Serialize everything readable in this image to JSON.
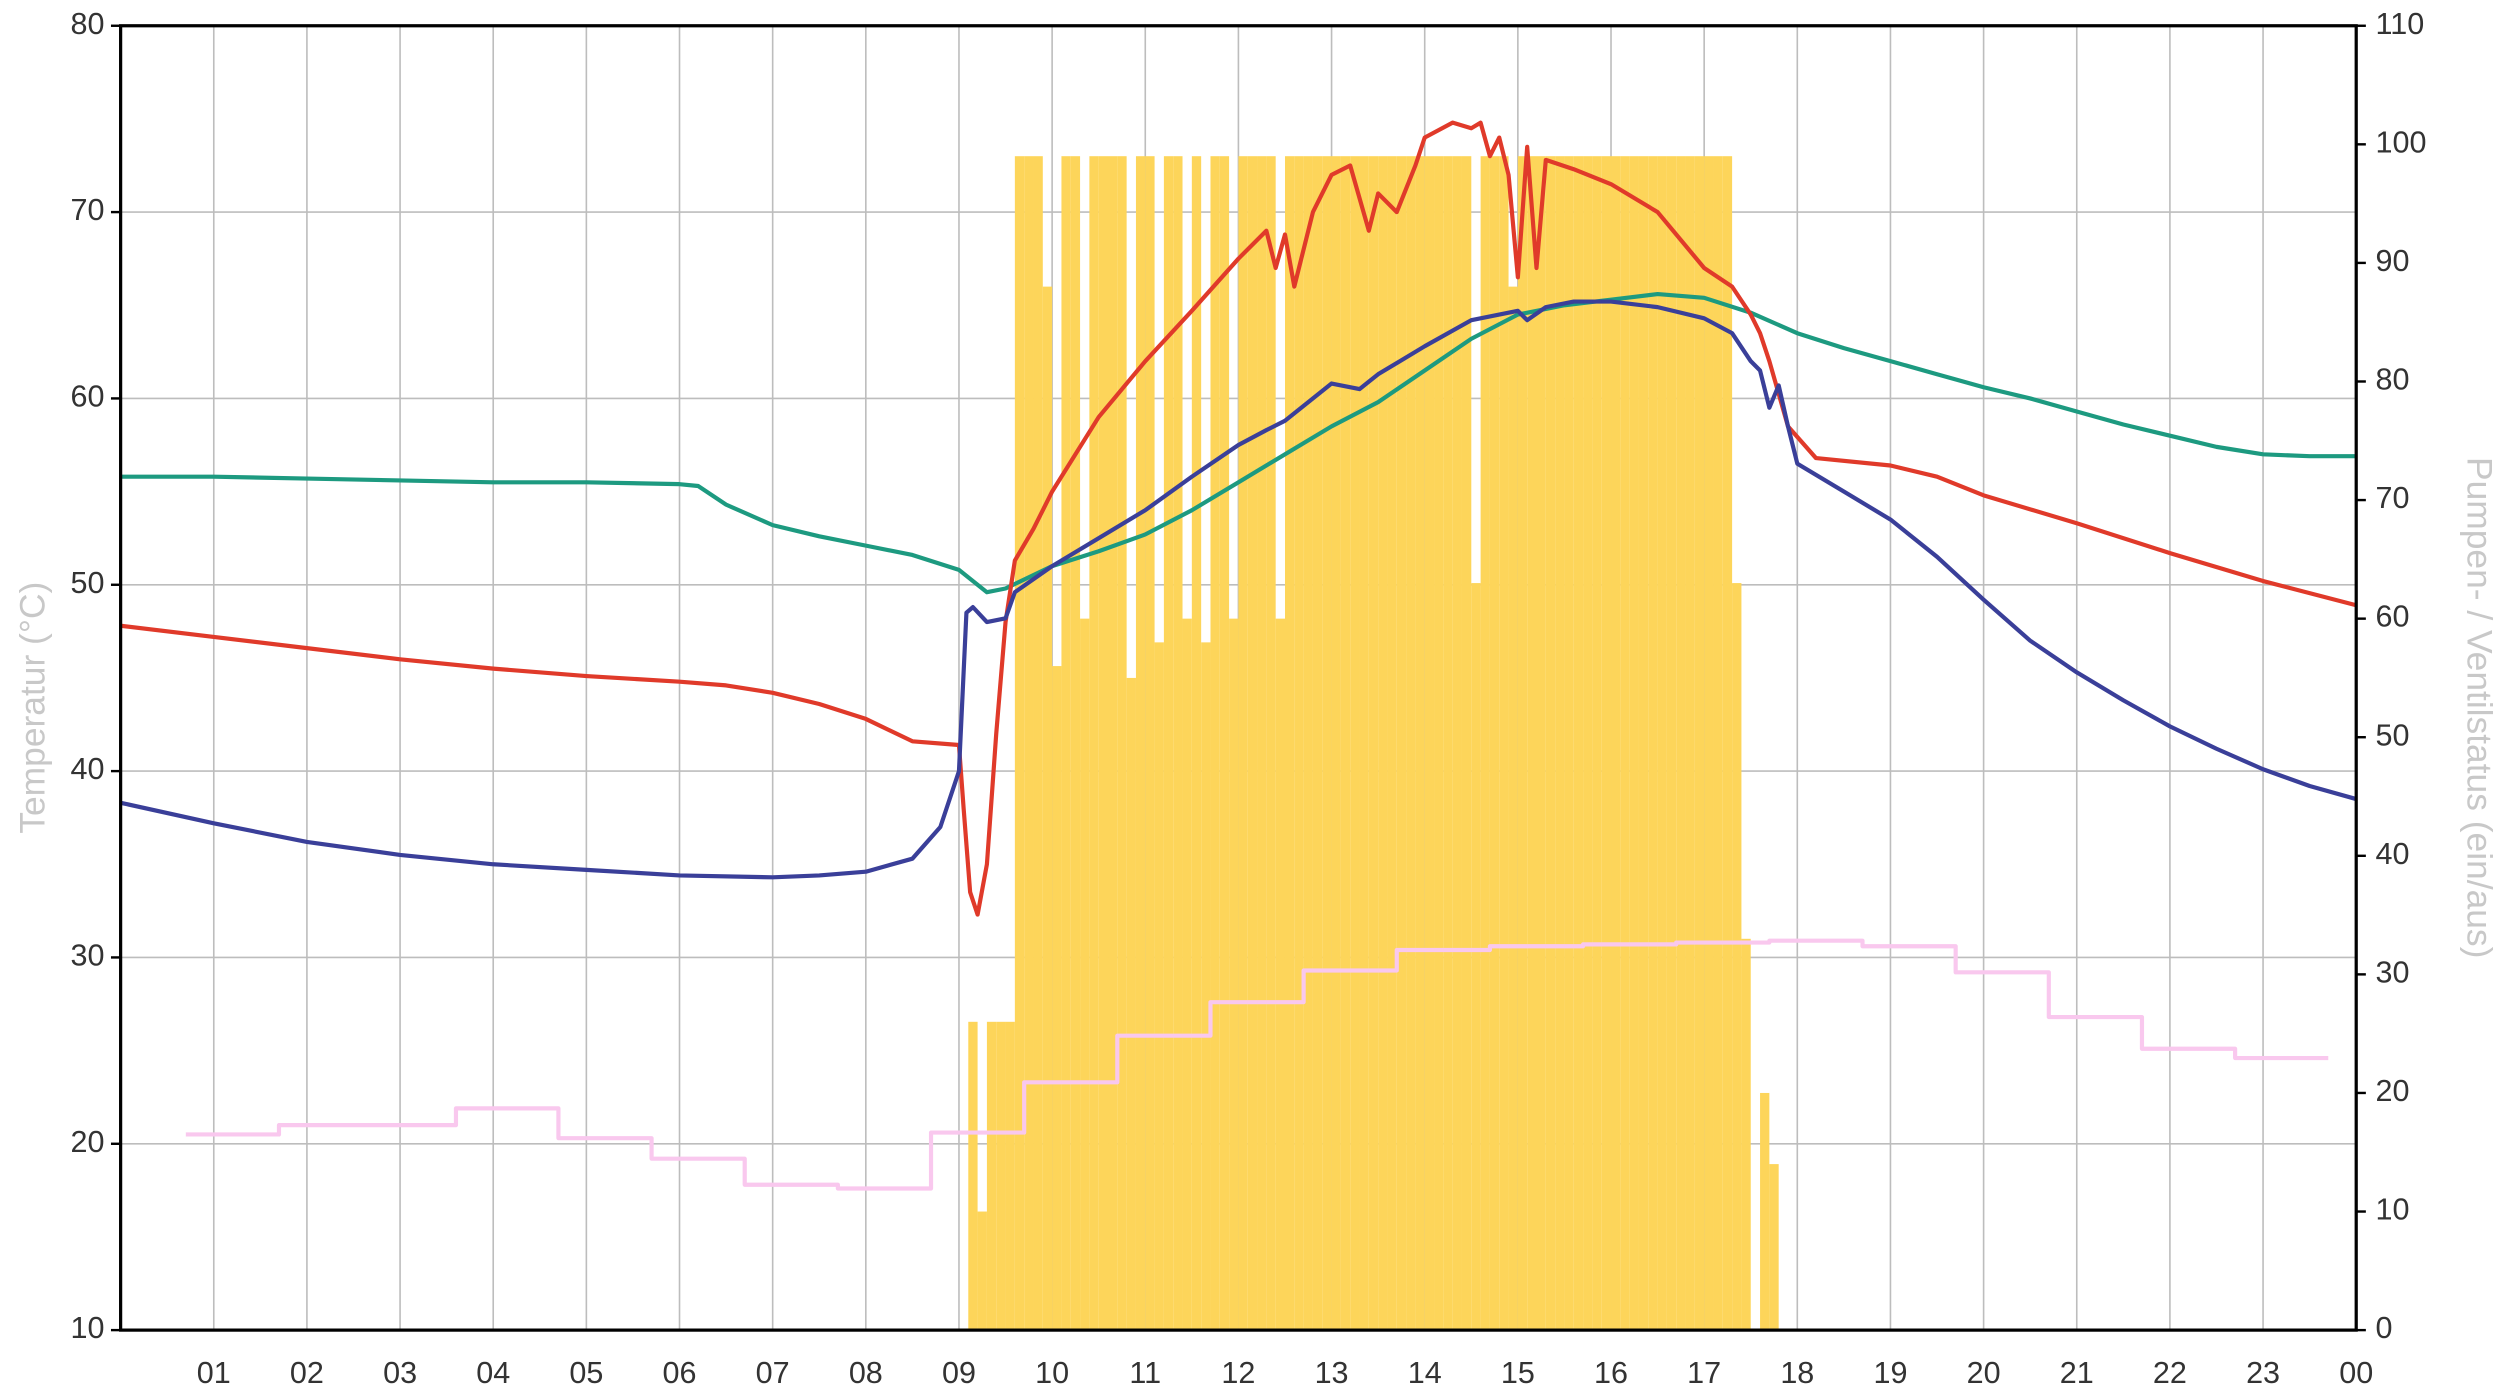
{
  "chart_data": {
    "type": "line",
    "ylabel": "Temperatur (°C)",
    "y2label": "Pumpen- / Ventilstatus (ein/aus)",
    "xlim": [
      0,
      24
    ],
    "xticks": [
      {
        "value": 1,
        "label": "01"
      },
      {
        "value": 2,
        "label": "02"
      },
      {
        "value": 3,
        "label": "03"
      },
      {
        "value": 4,
        "label": "04"
      },
      {
        "value": 5,
        "label": "05"
      },
      {
        "value": 6,
        "label": "06"
      },
      {
        "value": 7,
        "label": "07"
      },
      {
        "value": 8,
        "label": "08"
      },
      {
        "value": 9,
        "label": "09"
      },
      10,
      11,
      12,
      13,
      14,
      15,
      16,
      17,
      18,
      19,
      20,
      21,
      22,
      23,
      {
        "value": 24,
        "label": "00"
      }
    ],
    "ylim": [
      10,
      80
    ],
    "yticks": [
      10,
      20,
      30,
      40,
      50,
      60,
      70,
      80
    ],
    "y2lim": [
      0,
      110
    ],
    "y2ticks": [
      0,
      10,
      20,
      30,
      40,
      50,
      60,
      70,
      80,
      90,
      100,
      110
    ],
    "grid": true,
    "series": [
      {
        "type": "bar",
        "axis": "y2",
        "color": "#fdd55a",
        "width": 0.1,
        "x": [
          9.1,
          9.2,
          9.3,
          9.4,
          9.5,
          9.6,
          9.7,
          9.8,
          9.9,
          10.0,
          10.1,
          10.2,
          10.3,
          10.4,
          10.5,
          10.6,
          10.7,
          10.8,
          10.9,
          11.0,
          11.1,
          11.2,
          11.3,
          11.4,
          11.5,
          11.6,
          11.7,
          11.8,
          11.9,
          12.0,
          12.1,
          12.2,
          12.3,
          12.4,
          12.5,
          12.6,
          12.7,
          12.8,
          12.9,
          13.0,
          13.1,
          13.2,
          13.3,
          13.4,
          13.5,
          13.6,
          13.7,
          13.8,
          13.9,
          14.0,
          14.1,
          14.2,
          14.3,
          14.4,
          14.5,
          14.6,
          14.7,
          14.8,
          14.9,
          15.0,
          15.1,
          15.2,
          15.3,
          15.4,
          15.5,
          15.6,
          15.7,
          15.8,
          15.9,
          16.0,
          16.1,
          16.2,
          16.3,
          16.4,
          16.5,
          16.6,
          16.7,
          16.8,
          16.9,
          17.0,
          17.1,
          17.2,
          17.3,
          17.4,
          17.5,
          17.6,
          17.7
        ],
        "values": [
          26,
          10,
          26,
          26,
          26,
          99,
          99,
          99,
          88,
          56,
          99,
          99,
          60,
          99,
          99,
          99,
          99,
          55,
          99,
          99,
          58,
          99,
          99,
          60,
          99,
          58,
          99,
          99,
          60,
          99,
          99,
          99,
          99,
          60,
          99,
          99,
          99,
          99,
          99,
          99,
          99,
          99,
          99,
          99,
          99,
          99,
          99,
          99,
          99,
          99,
          99,
          99,
          99,
          99,
          63,
          99,
          99,
          99,
          88,
          99,
          99,
          99,
          99,
          99,
          99,
          99,
          99,
          99,
          99,
          99,
          99,
          99,
          99,
          99,
          99,
          99,
          99,
          99,
          99,
          99,
          99,
          99,
          63,
          33,
          0,
          20,
          14
        ]
      },
      {
        "type": "line",
        "color": "#1d9a80",
        "x": [
          0,
          1,
          2,
          3,
          4,
          5,
          6,
          6.2,
          6.5,
          7,
          7.5,
          8,
          8.5,
          9,
          9.3,
          9.5,
          10,
          10.5,
          11,
          11.5,
          12,
          12.5,
          13,
          13.5,
          14,
          14.5,
          15,
          15.5,
          16,
          16.5,
          17,
          17.5,
          18,
          18.5,
          19,
          19.5,
          20,
          20.5,
          21,
          21.5,
          22,
          22.5,
          23,
          23.5,
          24
        ],
        "values": [
          55.8,
          55.8,
          55.7,
          55.6,
          55.5,
          55.5,
          55.4,
          55.3,
          54.3,
          53.2,
          52.6,
          52.1,
          51.6,
          50.8,
          49.6,
          49.8,
          51.0,
          51.8,
          52.7,
          54.0,
          55.5,
          57.0,
          58.5,
          59.8,
          61.5,
          63.2,
          64.5,
          65.0,
          65.3,
          65.6,
          65.4,
          64.6,
          63.5,
          62.7,
          62.0,
          61.3,
          60.6,
          60.0,
          59.3,
          58.6,
          58.0,
          57.4,
          57.0,
          56.9,
          56.9
        ]
      },
      {
        "type": "line",
        "color": "#e03a2a",
        "x": [
          0,
          1,
          2,
          3,
          4,
          5,
          6,
          6.5,
          7,
          7.5,
          8,
          8.5,
          9,
          9.05,
          9.12,
          9.2,
          9.3,
          9.4,
          9.5,
          9.6,
          9.8,
          10,
          10.5,
          11,
          11.5,
          12,
          12.3,
          12.4,
          12.5,
          12.6,
          12.8,
          13,
          13.2,
          13.4,
          13.5,
          13.7,
          13.9,
          14,
          14.3,
          14.5,
          14.6,
          14.7,
          14.8,
          14.9,
          15,
          15.1,
          15.2,
          15.3,
          15.6,
          16,
          16.5,
          17,
          17.3,
          17.5,
          17.6,
          17.7,
          17.9,
          18.2,
          19,
          19.5,
          20,
          21,
          22,
          23,
          24
        ],
        "values": [
          47.8,
          47.2,
          46.6,
          46.0,
          45.5,
          45.1,
          44.8,
          44.6,
          44.2,
          43.6,
          42.8,
          41.6,
          41.4,
          38,
          33.5,
          32.3,
          35,
          42,
          48,
          51.3,
          53,
          55,
          59,
          62,
          64.7,
          67.5,
          69.0,
          67,
          68.8,
          66,
          70,
          72,
          72.5,
          69,
          71,
          70,
          72.5,
          74,
          74.8,
          74.5,
          74.8,
          73,
          74,
          72,
          66.5,
          73.5,
          67,
          72.8,
          72.3,
          71.5,
          70,
          67,
          66,
          64.5,
          63.5,
          62,
          58.5,
          56.8,
          56.4,
          55.8,
          54.8,
          53.3,
          51.7,
          50.2,
          48.9
        ]
      },
      {
        "type": "line",
        "color": "#3a3f99",
        "x": [
          0,
          1,
          2,
          3,
          4,
          5,
          6,
          7,
          7.5,
          8,
          8.5,
          8.8,
          9,
          9.08,
          9.15,
          9.3,
          9.5,
          9.6,
          10,
          10.5,
          11,
          11.5,
          12,
          12.3,
          12.5,
          13,
          13.3,
          13.5,
          14,
          14.5,
          15,
          15.1,
          15.3,
          15.6,
          16,
          16.5,
          17,
          17.3,
          17.5,
          17.6,
          17.7,
          17.8,
          17.9,
          18,
          18.5,
          19,
          19.5,
          20,
          20.5,
          21,
          21.5,
          22,
          22.5,
          23,
          23.5,
          24
        ],
        "values": [
          38.3,
          37.2,
          36.2,
          35.5,
          35.0,
          34.7,
          34.4,
          34.3,
          34.4,
          34.6,
          35.3,
          37,
          40,
          48.5,
          48.8,
          48.0,
          48.2,
          49.6,
          51,
          52.5,
          54,
          55.8,
          57.5,
          58.3,
          58.8,
          60.8,
          60.5,
          61.3,
          62.8,
          64.2,
          64.7,
          64.2,
          64.9,
          65.2,
          65.2,
          64.9,
          64.3,
          63.5,
          62.0,
          61.5,
          59.5,
          60.7,
          58.5,
          56.5,
          55,
          53.5,
          51.5,
          49.2,
          47,
          45.3,
          43.8,
          42.4,
          41.2,
          40.1,
          39.2,
          38.5
        ]
      },
      {
        "type": "step",
        "color": "#f9c8ee",
        "x": [
          0.7,
          1.7,
          3.6,
          4.7,
          5.7,
          6.7,
          7.7,
          8.7,
          9.7,
          10.7,
          11.7,
          12.7,
          13.7,
          14.7,
          15.7,
          16.7,
          17.7,
          18.7,
          19.7,
          20.7,
          21.7,
          22.7,
          23.7
        ],
        "values": [
          20.5,
          21.0,
          21.9,
          20.3,
          19.2,
          17.8,
          17.6,
          20.6,
          23.3,
          25.8,
          27.6,
          29.3,
          30.4,
          30.6,
          30.7,
          30.8,
          30.9,
          30.6,
          29.2,
          26.8,
          25.1,
          24.6,
          24.6
        ]
      }
    ]
  }
}
